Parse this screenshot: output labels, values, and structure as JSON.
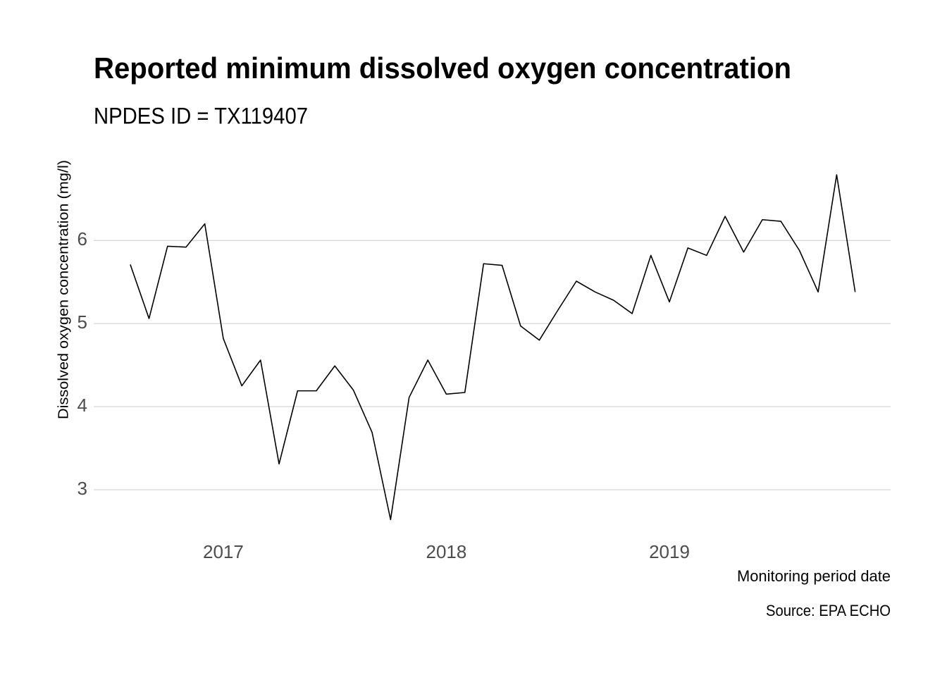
{
  "chart_data": {
    "type": "line",
    "title": "Reported minimum dissolved oxygen concentration",
    "subtitle": "NPDES ID = TX119407",
    "x_label": "Monitoring period date",
    "y_label": "Dissolved oxygen concentration (mg/l)",
    "caption": "Source: EPA ECHO",
    "x": [
      2016.583,
      2016.667,
      2016.75,
      2016.833,
      2016.917,
      2017,
      2017.083,
      2017.167,
      2017.25,
      2017.333,
      2017.417,
      2017.5,
      2017.583,
      2017.667,
      2017.75,
      2017.833,
      2017.917,
      2018,
      2018.083,
      2018.167,
      2018.25,
      2018.333,
      2018.417,
      2018.5,
      2018.583,
      2018.667,
      2018.75,
      2018.833,
      2018.917,
      2019,
      2019.083,
      2019.167,
      2019.25,
      2019.333,
      2019.417,
      2019.5,
      2019.583,
      2019.667,
      2019.75,
      2019.833
    ],
    "series": [
      {
        "name": "Dissolved oxygen",
        "color": "#000000",
        "values": [
          5.71,
          5.06,
          5.93,
          5.92,
          6.2,
          4.82,
          4.25,
          4.56,
          3.31,
          4.19,
          4.19,
          4.49,
          4.2,
          3.69,
          2.64,
          4.11,
          4.56,
          4.15,
          4.17,
          5.72,
          5.7,
          4.97,
          4.8,
          5.16,
          5.51,
          5.38,
          5.28,
          5.12,
          5.82,
          5.26,
          5.91,
          5.82,
          6.29,
          5.86,
          6.25,
          6.23,
          5.88,
          5.38,
          6.79,
          5.38
        ]
      }
    ],
    "xlim": [
      2016.419,
      2019.992
    ],
    "xticks": [
      2017,
      2018,
      2019
    ],
    "ylim": [
      2.55,
      6.85
    ],
    "yticks": [
      3,
      4,
      5,
      6
    ],
    "grid": "y"
  }
}
